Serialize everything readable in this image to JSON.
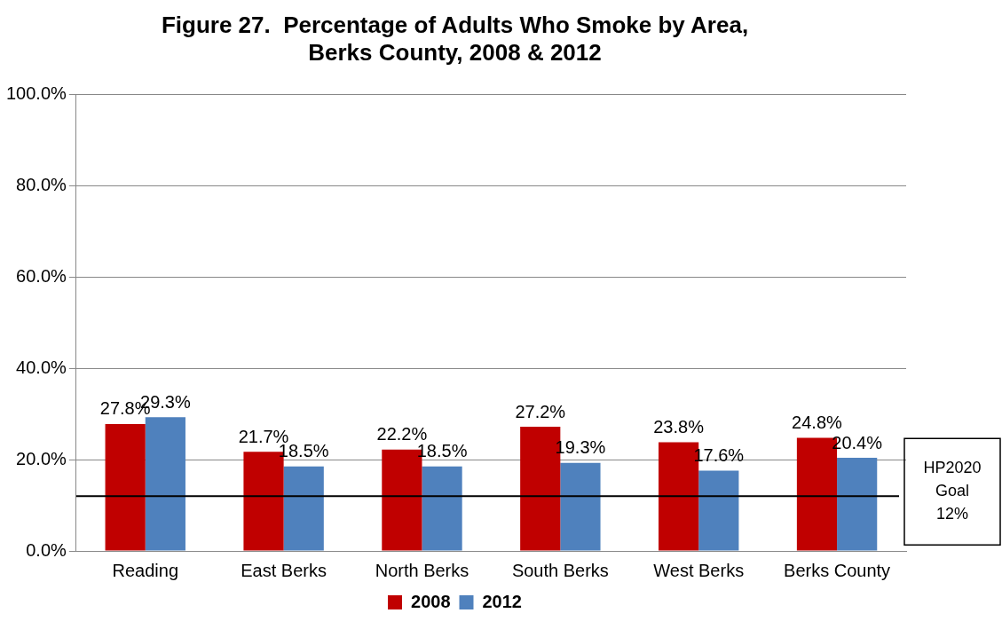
{
  "chart_data": {
    "type": "bar",
    "title": "Figure 27.  Percentage of Adults Who Smoke by Area,\nBerks County, 2008 & 2012",
    "categories": [
      "Reading",
      "East Berks",
      "North Berks",
      "South Berks",
      "West Berks",
      "Berks County"
    ],
    "series": [
      {
        "name": "2008",
        "color": "#c00000",
        "values": [
          27.8,
          21.7,
          22.2,
          27.2,
          23.8,
          24.8
        ],
        "value_labels": [
          "27.8%",
          "21.7%",
          "22.2%",
          "27.2%",
          "23.8%",
          "24.8%"
        ]
      },
      {
        "name": "2012",
        "color": "#4f81bd",
        "values": [
          29.3,
          18.5,
          18.5,
          19.3,
          17.6,
          20.4
        ],
        "value_labels": [
          "29.3%",
          "18.5%",
          "18.5%",
          "19.3%",
          "17.6%",
          "20.4%"
        ]
      }
    ],
    "ylim": [
      0,
      100
    ],
    "yticks": [
      {
        "value": 0,
        "label": "0.0%"
      },
      {
        "value": 20,
        "label": "20.0%"
      },
      {
        "value": 40,
        "label": "40.0%"
      },
      {
        "value": 60,
        "label": "60.0%"
      },
      {
        "value": 80,
        "label": "80.0%"
      },
      {
        "value": 100,
        "label": "100.0%"
      }
    ],
    "ref_lines": [
      {
        "axis": "y",
        "value": 12,
        "label": "HP2020\nGoal\n12%",
        "color": "#000000"
      }
    ],
    "grid": "y",
    "legend": "bottom"
  }
}
